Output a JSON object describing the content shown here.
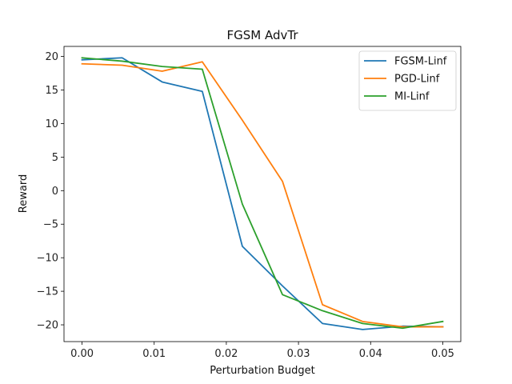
{
  "chart_data": {
    "type": "line",
    "title": "FGSM AdvTr",
    "xlabel": "Perturbation Budget",
    "ylabel": "Reward",
    "xlim": [
      -0.0025,
      0.0525
    ],
    "ylim": [
      -22.5,
      21.5
    ],
    "xticks": [
      0.0,
      0.01,
      0.02,
      0.03,
      0.04,
      0.05
    ],
    "xtick_labels": [
      "0.00",
      "0.01",
      "0.02",
      "0.03",
      "0.04",
      "0.05"
    ],
    "yticks": [
      -20,
      -15,
      -10,
      -5,
      0,
      5,
      10,
      15,
      20
    ],
    "ytick_labels": [
      "−20",
      "−15",
      "−10",
      "−5",
      "0",
      "5",
      "10",
      "15",
      "20"
    ],
    "legend_position": "top-right",
    "grid": false,
    "x": [
      0.0,
      0.00556,
      0.01111,
      0.01667,
      0.02222,
      0.02778,
      0.03333,
      0.03889,
      0.04444,
      0.05
    ],
    "series": [
      {
        "name": "FGSM-Linf",
        "color": "#1f77b4",
        "values": [
          19.5,
          19.8,
          16.2,
          14.8,
          -8.3,
          -14.2,
          -19.8,
          -20.7,
          -20.2,
          -20.3
        ]
      },
      {
        "name": "PGD-Linf",
        "color": "#ff7f0e",
        "values": [
          18.9,
          18.7,
          17.8,
          19.2,
          10.5,
          1.4,
          -17.0,
          -19.5,
          -20.3,
          -20.3
        ]
      },
      {
        "name": "MI-Linf",
        "color": "#2ca02c",
        "values": [
          19.8,
          19.3,
          18.5,
          18.1,
          -2.0,
          -15.5,
          -17.9,
          -19.8,
          -20.5,
          -19.5
        ]
      }
    ]
  }
}
